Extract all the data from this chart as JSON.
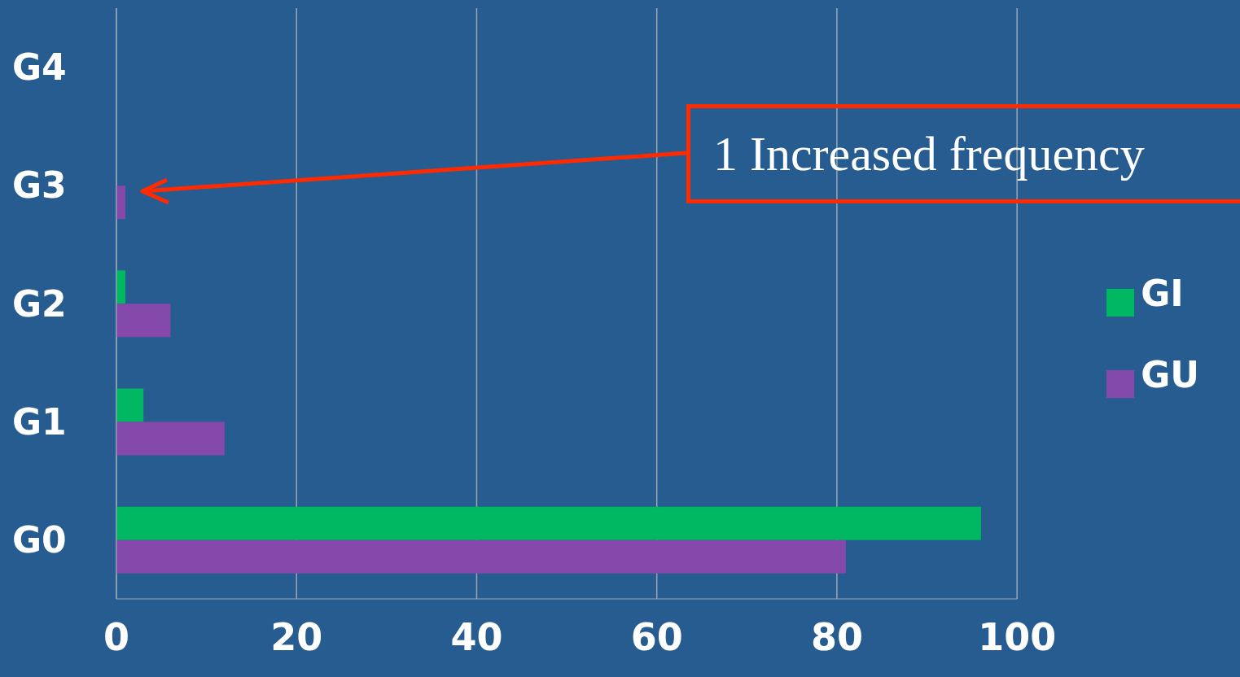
{
  "chart_data": {
    "type": "bar",
    "orientation": "horizontal",
    "categories": [
      "G4",
      "G3",
      "G2",
      "G1",
      "G0"
    ],
    "series": [
      {
        "name": "GI",
        "color": "#00b862",
        "values": [
          null,
          null,
          1,
          3,
          96
        ]
      },
      {
        "name": "GU",
        "color": "#8549ac",
        "values": [
          null,
          1,
          6,
          12,
          81
        ]
      }
    ],
    "xlim": [
      0,
      100
    ],
    "xticks": [
      0,
      20,
      40,
      60,
      80,
      100
    ],
    "grid": "x",
    "legend": "right",
    "annotations": [
      "1 Increased frequency"
    ]
  }
}
